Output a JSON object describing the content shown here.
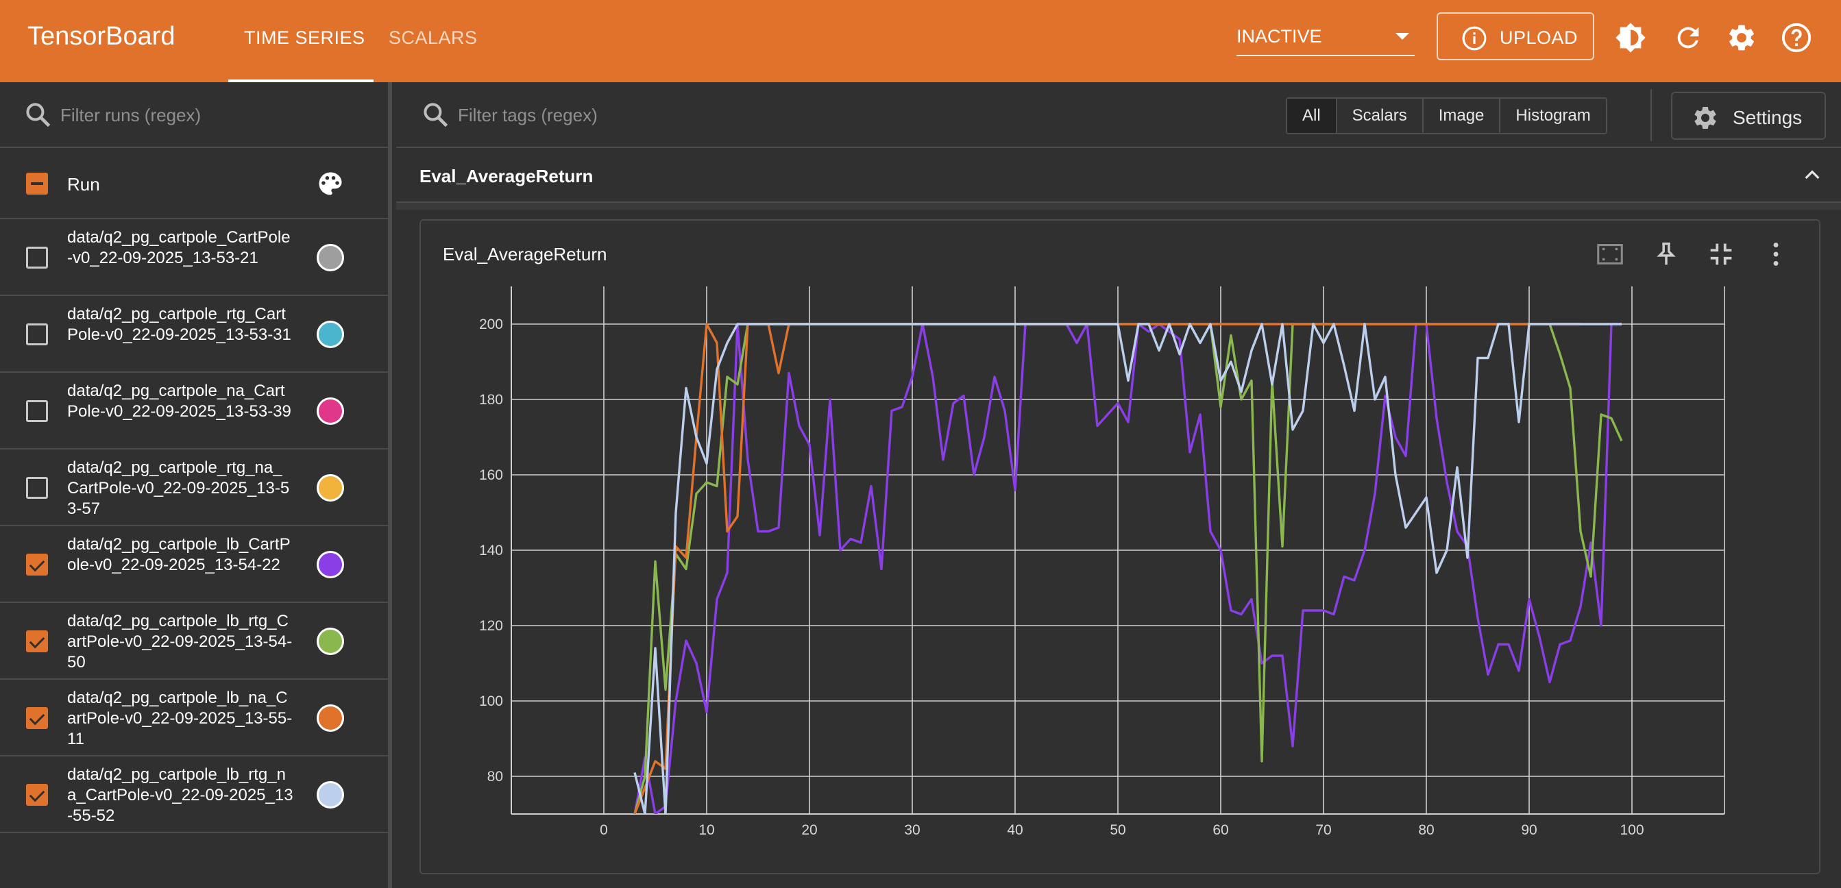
{
  "app": {
    "title": "TensorBoard"
  },
  "nav": {
    "tabs": [
      {
        "label": "TIME SERIES"
      },
      {
        "label": "SCALARS"
      }
    ]
  },
  "toolbar": {
    "plugin_select": "INACTIVE",
    "upload_label": "UPLOAD"
  },
  "sidebar": {
    "filter_placeholder": "Filter runs (regex)",
    "header_label": "Run",
    "runs": [
      {
        "name": "data/q2_pg_cartpole_CartPole-v0_22-09-2025_13-53-21",
        "checked": false,
        "color": "#9e9e9e"
      },
      {
        "name": "data/q2_pg_cartpole_rtg_CartPole-v0_22-09-2025_13-53-31",
        "checked": false,
        "color": "#4ab5cc"
      },
      {
        "name": "data/q2_pg_cartpole_na_CartPole-v0_22-09-2025_13-53-39",
        "checked": false,
        "color": "#e0378a"
      },
      {
        "name": "data/q2_pg_cartpole_rtg_na_CartPole-v0_22-09-2025_13-53-57",
        "checked": false,
        "color": "#f2b33d"
      },
      {
        "name": "data/q2_pg_cartpole_lb_CartPole-v0_22-09-2025_13-54-22",
        "checked": true,
        "color": "#8a3ee6"
      },
      {
        "name": "data/q2_pg_cartpole_lb_rtg_CartPole-v0_22-09-2025_13-54-50",
        "checked": true,
        "color": "#8ab84e"
      },
      {
        "name": "data/q2_pg_cartpole_lb_na_CartPole-v0_22-09-2025_13-55-11",
        "checked": true,
        "color": "#e0722b"
      },
      {
        "name": "data/q2_pg_cartpole_lb_rtg_na_CartPole-v0_22-09-2025_13-55-52",
        "checked": true,
        "color": "#bcd0ee"
      }
    ]
  },
  "main": {
    "tag_filter_placeholder": "Filter tags (regex)",
    "type_filters": [
      "All",
      "Scalars",
      "Image",
      "Histogram"
    ],
    "settings_label": "Settings",
    "group_title": "Eval_AverageReturn",
    "card_title": "Eval_AverageReturn"
  },
  "chart_data": {
    "type": "line",
    "title": "Eval_AverageReturn",
    "xlabel": "",
    "ylabel": "",
    "xlim": [
      -9,
      109
    ],
    "ylim": [
      70,
      210
    ],
    "xticks": [
      0,
      10,
      20,
      30,
      40,
      50,
      60,
      70,
      80,
      90,
      100
    ],
    "yticks": [
      80,
      100,
      120,
      140,
      160,
      180,
      200
    ],
    "grid": true,
    "series": [
      {
        "run": "data/q2_pg_cartpole_lb_CartPole-v0_22-09-2025_13-54-22",
        "color": "#8a3ee6",
        "x": [
          3,
          4,
          5,
          6,
          7,
          8,
          9,
          10,
          11,
          12,
          13,
          14,
          15,
          16,
          17,
          18,
          19,
          20,
          21,
          22,
          23,
          24,
          25,
          26,
          27,
          28,
          29,
          30,
          31,
          32,
          33,
          34,
          35,
          36,
          37,
          38,
          39,
          40,
          41,
          42,
          43,
          44,
          45,
          46,
          47,
          48,
          49,
          50,
          51,
          52,
          53,
          54,
          55,
          56,
          57,
          58,
          59,
          60,
          61,
          62,
          63,
          64,
          65,
          66,
          67,
          68,
          69,
          70,
          71,
          72,
          73,
          74,
          75,
          76,
          77,
          78,
          79,
          80,
          81,
          82,
          83,
          84,
          85,
          86,
          87,
          88,
          89,
          90,
          91,
          92,
          93,
          94,
          95,
          96,
          97,
          98,
          99
        ],
        "y": [
          70,
          85,
          70,
          72,
          100,
          116,
          110,
          97,
          127,
          134,
          200,
          164,
          145,
          145,
          146,
          187,
          173,
          168,
          144,
          180,
          140,
          143,
          142,
          157,
          135,
          177,
          178,
          186,
          200,
          186,
          164,
          179,
          181,
          160,
          170,
          186,
          177,
          156,
          200,
          200,
          200,
          200,
          200,
          195,
          200,
          173,
          176,
          179,
          174,
          200,
          198,
          200,
          198,
          196,
          166,
          176,
          145,
          140,
          124,
          123,
          127,
          110,
          112,
          112,
          88,
          124,
          124,
          124,
          123,
          133,
          132,
          140,
          155,
          181,
          170,
          165,
          200,
          200,
          175,
          158,
          145,
          141,
          122,
          107,
          115,
          115,
          108,
          127,
          117,
          105,
          115,
          116,
          125,
          142,
          120,
          200,
          200
        ],
        "y_note": ""
      },
      {
        "run": "data/q2_pg_cartpole_lb_rtg_CartPole-v0_22-09-2025_13-54-50",
        "color": "#8ab84e",
        "x": [
          3,
          4,
          5,
          6,
          7,
          8,
          9,
          10,
          11,
          12,
          13,
          14,
          15,
          16,
          17,
          18,
          19,
          20,
          30,
          40,
          50,
          55,
          58,
          59,
          60,
          61,
          62,
          63,
          64,
          65,
          66,
          67,
          68,
          69,
          70,
          80,
          90,
          92,
          93,
          94,
          95,
          96,
          97,
          98,
          99
        ],
        "y": [
          70,
          80,
          137,
          103,
          139,
          135,
          155,
          158,
          157,
          186,
          184,
          200,
          200,
          200,
          200,
          200,
          200,
          200,
          200,
          200,
          200,
          200,
          200,
          200,
          178,
          197,
          180,
          185,
          84,
          185,
          141,
          200,
          200,
          200,
          200,
          200,
          200,
          200,
          192,
          183,
          145,
          133,
          176,
          175,
          169
        ]
      },
      {
        "run": "data/q2_pg_cartpole_lb_na_CartPole-v0_22-09-2025_13-55-11",
        "color": "#e0722b",
        "x": [
          3,
          4,
          5,
          6,
          7,
          8,
          9,
          10,
          11,
          12,
          13,
          14,
          15,
          16,
          17,
          18,
          19,
          20,
          30,
          40,
          50,
          60,
          70,
          80,
          90,
          95
        ],
        "y": [
          70,
          77,
          84,
          82,
          141,
          138,
          170,
          200,
          195,
          145,
          149,
          200,
          200,
          200,
          187,
          200,
          200,
          200,
          200,
          200,
          200,
          200,
          200,
          200,
          200,
          200
        ]
      },
      {
        "run": "data/q2_pg_cartpole_lb_rtg_na_CartPole-v0_22-09-2025_13-55-52",
        "color": "#bcd0ee",
        "x": [
          3,
          4,
          5,
          6,
          7,
          8,
          9,
          10,
          11,
          12,
          13,
          14,
          15,
          16,
          17,
          18,
          19,
          20,
          30,
          40,
          50,
          51,
          52,
          53,
          54,
          55,
          56,
          57,
          58,
          59,
          60,
          61,
          62,
          63,
          64,
          65,
          66,
          67,
          68,
          69,
          70,
          71,
          72,
          73,
          74,
          75,
          76,
          77,
          78,
          79,
          80,
          81,
          82,
          83,
          84,
          85,
          86,
          87,
          88,
          89,
          90,
          91,
          92,
          93,
          94,
          95,
          96,
          97,
          98,
          99
        ],
        "y": [
          81,
          70,
          114,
          70,
          150,
          183,
          170,
          163,
          188,
          195,
          200,
          200,
          200,
          200,
          200,
          200,
          200,
          200,
          200,
          200,
          200,
          185,
          200,
          200,
          193,
          200,
          192,
          200,
          195,
          200,
          185,
          190,
          182,
          193,
          200,
          184,
          200,
          172,
          177,
          200,
          195,
          200,
          189,
          177,
          200,
          180,
          186,
          160,
          146,
          150,
          154,
          134,
          140,
          162,
          138,
          191,
          191,
          200,
          200,
          174,
          200,
          200,
          200,
          200,
          200,
          200,
          200,
          200,
          200,
          200
        ]
      }
    ]
  }
}
